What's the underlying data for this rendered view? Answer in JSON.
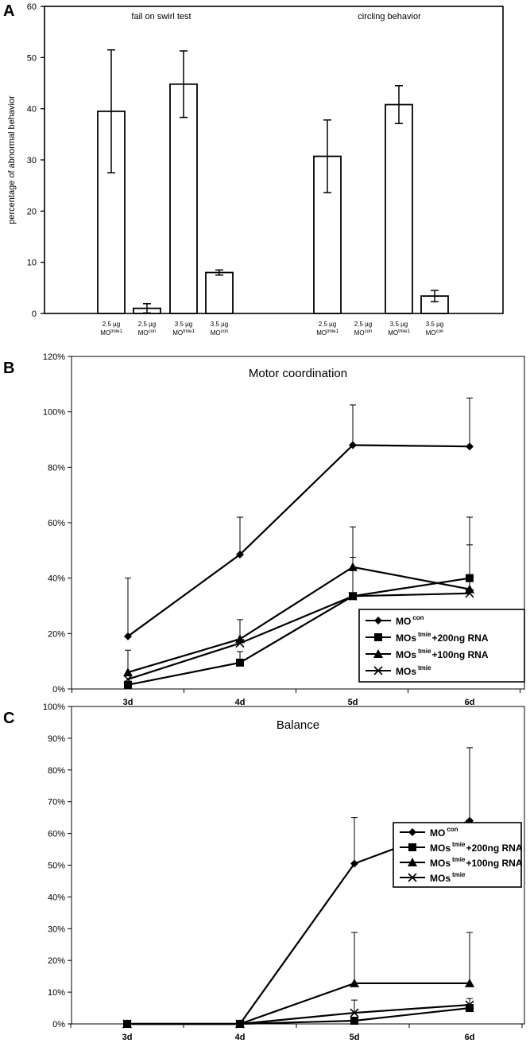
{
  "chart_data": [
    {
      "panel": "A",
      "type": "bar",
      "ylabel": "percentage of abnormal behavior",
      "ylim": [
        0,
        60
      ],
      "yticks": [
        "0",
        "10",
        "20",
        "30",
        "40",
        "50",
        "60"
      ],
      "groups": [
        {
          "title": "fail on swirl test",
          "bars": [
            {
              "dose": "2.5 µg",
              "mo": "MO",
              "sup": "tmie1",
              "value": 39.5,
              "err": 12.0
            },
            {
              "dose": "2.5 µg",
              "mo": "MO",
              "sup": "con",
              "value": 1.0,
              "err": 0.9
            },
            {
              "dose": "3.5 µg",
              "mo": "MO",
              "sup": "tmie1",
              "value": 44.8,
              "err": 6.5
            },
            {
              "dose": "3.5 µg",
              "mo": "MO",
              "sup": "con",
              "value": 8.0,
              "err": 0.5
            }
          ]
        },
        {
          "title": "circling behavior",
          "bars": [
            {
              "dose": "2.5 µg",
              "mo": "MO",
              "sup": "tmie1",
              "value": 30.7,
              "err": 7.1
            },
            {
              "dose": "2.5 µg",
              "mo": "MO",
              "sup": "con",
              "value": 0,
              "err": 0
            },
            {
              "dose": "3.5 µg",
              "mo": "MO",
              "sup": "tmie1",
              "value": 40.8,
              "err": 3.7
            },
            {
              "dose": "3.5 µg",
              "mo": "MO",
              "sup": "con",
              "value": 3.4,
              "err": 1.1
            }
          ]
        }
      ]
    },
    {
      "panel": "B",
      "type": "line",
      "title": "Motor coordination",
      "categories": [
        "3d",
        "4d",
        "5d",
        "6d"
      ],
      "ylim": [
        0,
        120
      ],
      "yticks": [
        "0%",
        "20%",
        "40%",
        "60%",
        "80%",
        "100%",
        "120%"
      ],
      "series": [
        {
          "name": "MO",
          "sup": "con",
          "suffix": "",
          "marker": "diamond",
          "values": [
            19,
            48.5,
            88,
            87.5
          ],
          "err": [
            21,
            13.5,
            14.5,
            17.5
          ]
        },
        {
          "name": "MOs",
          "sup": "tmie",
          "suffix": "+200ng RNA",
          "marker": "square",
          "values": [
            1.5,
            9.5,
            33.5,
            40
          ],
          "err": [
            0,
            4,
            0,
            22
          ]
        },
        {
          "name": "MOs",
          "sup": "tmie",
          "suffix": "+100ng RNA",
          "marker": "triangle",
          "values": [
            6,
            18,
            44,
            36
          ],
          "err": [
            8,
            7,
            14.5,
            16
          ]
        },
        {
          "name": "MOs",
          "sup": "tmie",
          "suffix": "",
          "marker": "x",
          "values": [
            3.5,
            16.5,
            33.5,
            34.5
          ],
          "err": [
            0,
            0,
            14,
            0
          ]
        }
      ]
    },
    {
      "panel": "C",
      "type": "line",
      "title": "Balance",
      "categories": [
        "3d",
        "4d",
        "5d",
        "6d"
      ],
      "ylim": [
        0,
        100
      ],
      "yticks": [
        "0%",
        "10%",
        "20%",
        "30%",
        "40%",
        "50%",
        "60%",
        "70%",
        "80%",
        "90%",
        "100%"
      ],
      "series": [
        {
          "name": "MO",
          "sup": "con",
          "suffix": "",
          "marker": "diamond",
          "values": [
            0,
            0,
            50.5,
            64
          ],
          "err": [
            0,
            0,
            14.5,
            23
          ]
        },
        {
          "name": "MOs",
          "sup": "tmie",
          "suffix": "+200ng RNA",
          "marker": "square",
          "values": [
            0,
            0,
            1,
            5
          ],
          "err": [
            0,
            0,
            0,
            0
          ]
        },
        {
          "name": "MOs",
          "sup": "tmie",
          "suffix": "+100ng RNA",
          "marker": "triangle",
          "values": [
            0,
            0,
            12.8,
            12.8
          ],
          "err": [
            0,
            0,
            16,
            16
          ]
        },
        {
          "name": "MOs",
          "sup": "tmie",
          "suffix": "",
          "marker": "x",
          "values": [
            0,
            0,
            3.5,
            6
          ],
          "err": [
            0,
            0,
            4,
            2
          ]
        }
      ]
    }
  ]
}
